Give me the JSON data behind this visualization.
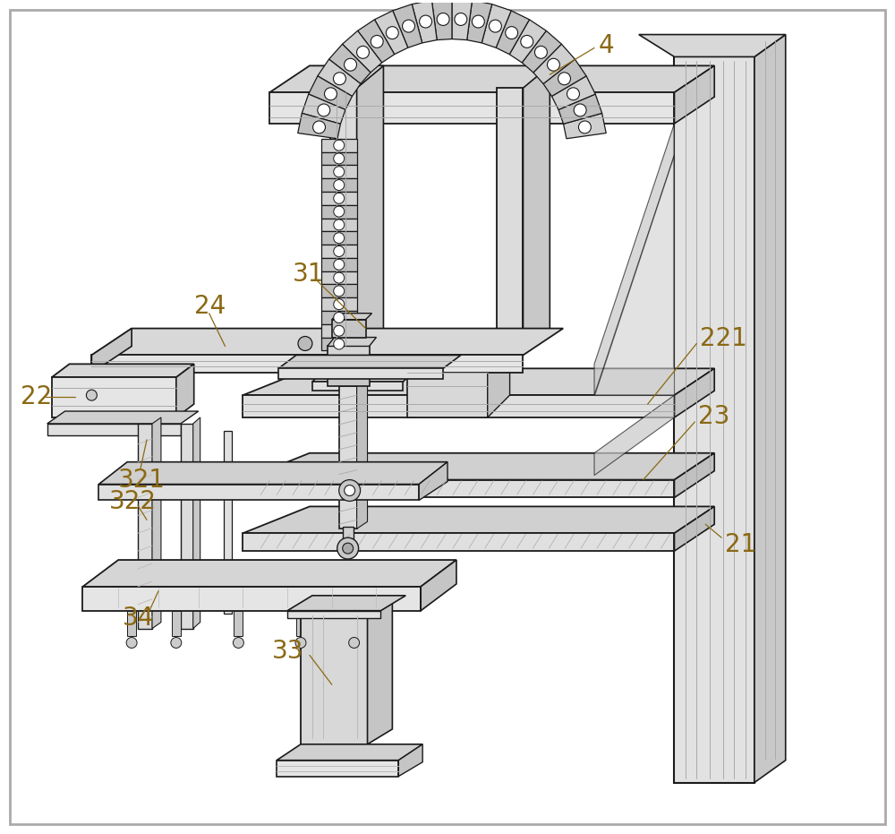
{
  "background_color": "#ffffff",
  "line_color": "#1a1a1a",
  "label_color": "#8B6914",
  "fill_light": "#e8e8e8",
  "fill_mid": "#d0d0d0",
  "fill_dark": "#b8b8b8",
  "fill_white": "#f5f5f5",
  "figsize": [
    10.0,
    9.31
  ],
  "dpi": 100,
  "border_color": "#cccccc"
}
